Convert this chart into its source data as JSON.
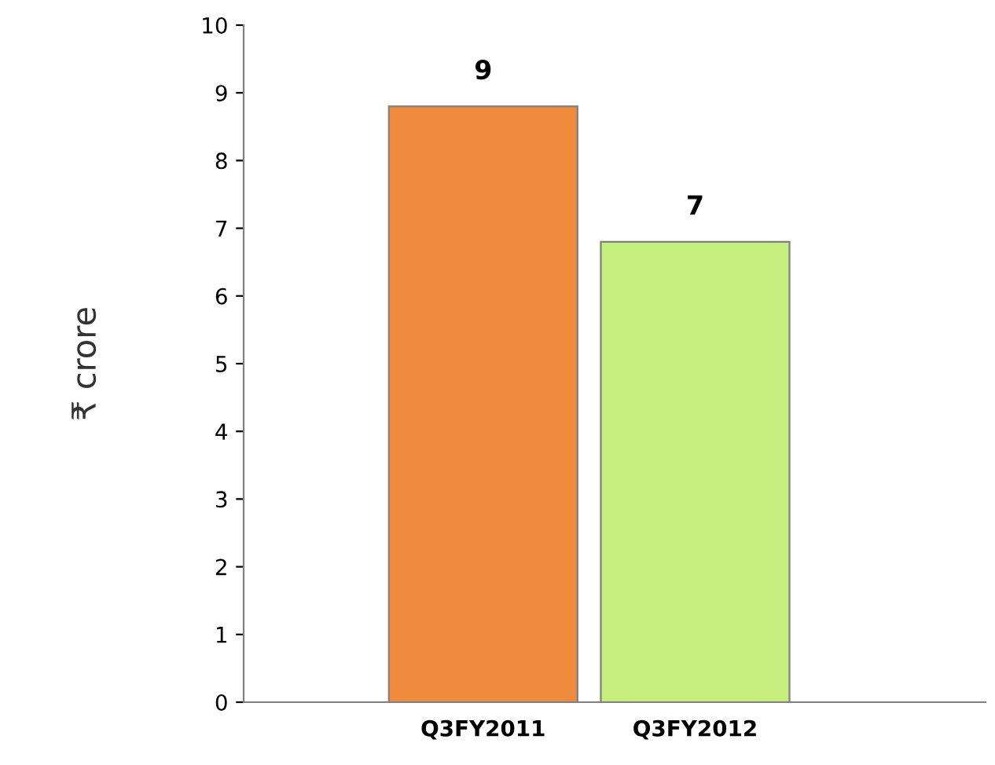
{
  "chart_data": {
    "type": "bar",
    "ylabel": "₹ crore",
    "categories": [
      "Q3FY2011",
      "Q3FY2012"
    ],
    "values": [
      8.8,
      6.8
    ],
    "value_labels": [
      "9",
      "7"
    ],
    "colors": [
      "#f08a3c",
      "#c6ee7c"
    ],
    "ylim": [
      0,
      10
    ],
    "yticks": [
      0,
      1,
      2,
      3,
      4,
      5,
      6,
      7,
      8,
      9,
      10
    ],
    "grid": false,
    "legend": false
  }
}
